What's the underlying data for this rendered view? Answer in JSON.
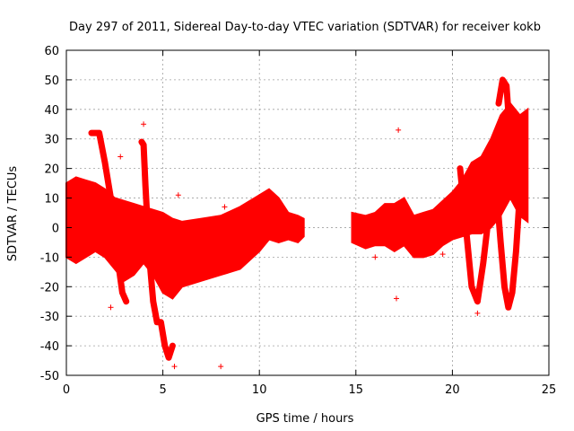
{
  "chart_data": {
    "type": "scatter",
    "title": "Day 297 of 2011, Sidereal Day-to-day VTEC variation (SDTVAR) for receiver kokb",
    "xlabel": "GPS time / hours",
    "ylabel": "SDTVAR / TECUs",
    "xlim": [
      0,
      25
    ],
    "ylim": [
      -50,
      60
    ],
    "x_ticks": [
      0,
      5,
      10,
      15,
      20,
      25
    ],
    "x_tick_labels": [
      "0",
      "5",
      "10",
      "15",
      "20",
      "25"
    ],
    "y_ticks": [
      -50,
      -40,
      -30,
      -20,
      -10,
      0,
      10,
      20,
      30,
      40,
      50,
      60
    ],
    "y_tick_labels": [
      "-50",
      "-40",
      "-30",
      "-20",
      "-10",
      "0",
      "10",
      "20",
      "30",
      "40",
      "50",
      "60"
    ],
    "grid": true,
    "marker": "+",
    "series_color": "#ff0000",
    "series": [
      {
        "name": "SDTVAR",
        "envelope": {
          "x": [
            0,
            0.5,
            1.0,
            1.5,
            2.0,
            2.5,
            3.0,
            3.5,
            4.0,
            4.5,
            5.0,
            5.5,
            6.0,
            7.0,
            8.0,
            9.0,
            10.0,
            10.5,
            11.0,
            11.5,
            12.0,
            12.3
          ],
          "upper": [
            15,
            17,
            16,
            15,
            13,
            10,
            9,
            8,
            7,
            6,
            5,
            3,
            2,
            3,
            4,
            7,
            11,
            13,
            10,
            5,
            4,
            3
          ],
          "lower": [
            -10,
            -12,
            -10,
            -8,
            -10,
            -14,
            -18,
            -16,
            -12,
            -16,
            -22,
            -24,
            -20,
            -18,
            -16,
            -14,
            -8,
            -4,
            -5,
            -4,
            -5,
            -3
          ]
        },
        "envelope2": {
          "x": [
            14.8,
            15.5,
            16.0,
            16.5,
            17.0,
            17.5,
            18.0,
            18.5,
            19.0,
            19.5,
            20.0,
            20.5,
            21.0,
            21.5,
            22.0,
            22.5,
            23.0,
            23.5,
            23.9
          ],
          "upper": [
            5,
            4,
            5,
            8,
            8,
            10,
            4,
            5,
            6,
            9,
            12,
            16,
            22,
            24,
            30,
            38,
            42,
            38,
            40
          ],
          "lower": [
            -5,
            -7,
            -6,
            -6,
            -8,
            -6,
            -10,
            -10,
            -9,
            -6,
            -4,
            -3,
            -2,
            -2,
            0,
            4,
            10,
            4,
            2
          ]
        },
        "arcs": [
          {
            "x": [
              1.3,
              1.7,
              2.0,
              2.3,
              2.6,
              2.9,
              3.1
            ],
            "y": [
              32,
              32,
              22,
              10,
              -8,
              -22,
              -25
            ]
          },
          {
            "x": [
              3.9,
              4.0,
              4.1,
              4.3,
              4.5,
              4.7,
              4.9,
              5.1,
              5.3,
              5.5
            ],
            "y": [
              29,
              28,
              14,
              -10,
              -25,
              -32,
              -32,
              -40,
              -44,
              -40
            ]
          },
          {
            "x": [
              20.4,
              20.7,
              21.0,
              21.3,
              21.6,
              21.9
            ],
            "y": [
              20,
              0,
              -20,
              -25,
              -12,
              5
            ]
          },
          {
            "x": [
              22.2,
              22.5,
              22.7,
              22.9,
              23.1,
              23.3,
              23.5
            ],
            "y": [
              20,
              -5,
              -20,
              -27,
              -22,
              -8,
              12
            ]
          },
          {
            "x": [
              22.4,
              22.6,
              22.8,
              23.0
            ],
            "y": [
              42,
              50,
              48,
              30
            ]
          }
        ],
        "outliers": [
          {
            "x": 4.0,
            "y": 35
          },
          {
            "x": 2.8,
            "y": 24
          },
          {
            "x": 17.2,
            "y": 33
          },
          {
            "x": 8.0,
            "y": -47
          },
          {
            "x": 5.6,
            "y": -47
          },
          {
            "x": 5.8,
            "y": 11
          },
          {
            "x": 2.3,
            "y": -27
          },
          {
            "x": 21.3,
            "y": -29
          },
          {
            "x": 17.1,
            "y": -24
          },
          {
            "x": 16.0,
            "y": -10
          },
          {
            "x": 19.5,
            "y": -9
          },
          {
            "x": 8.2,
            "y": 7
          }
        ]
      }
    ]
  }
}
